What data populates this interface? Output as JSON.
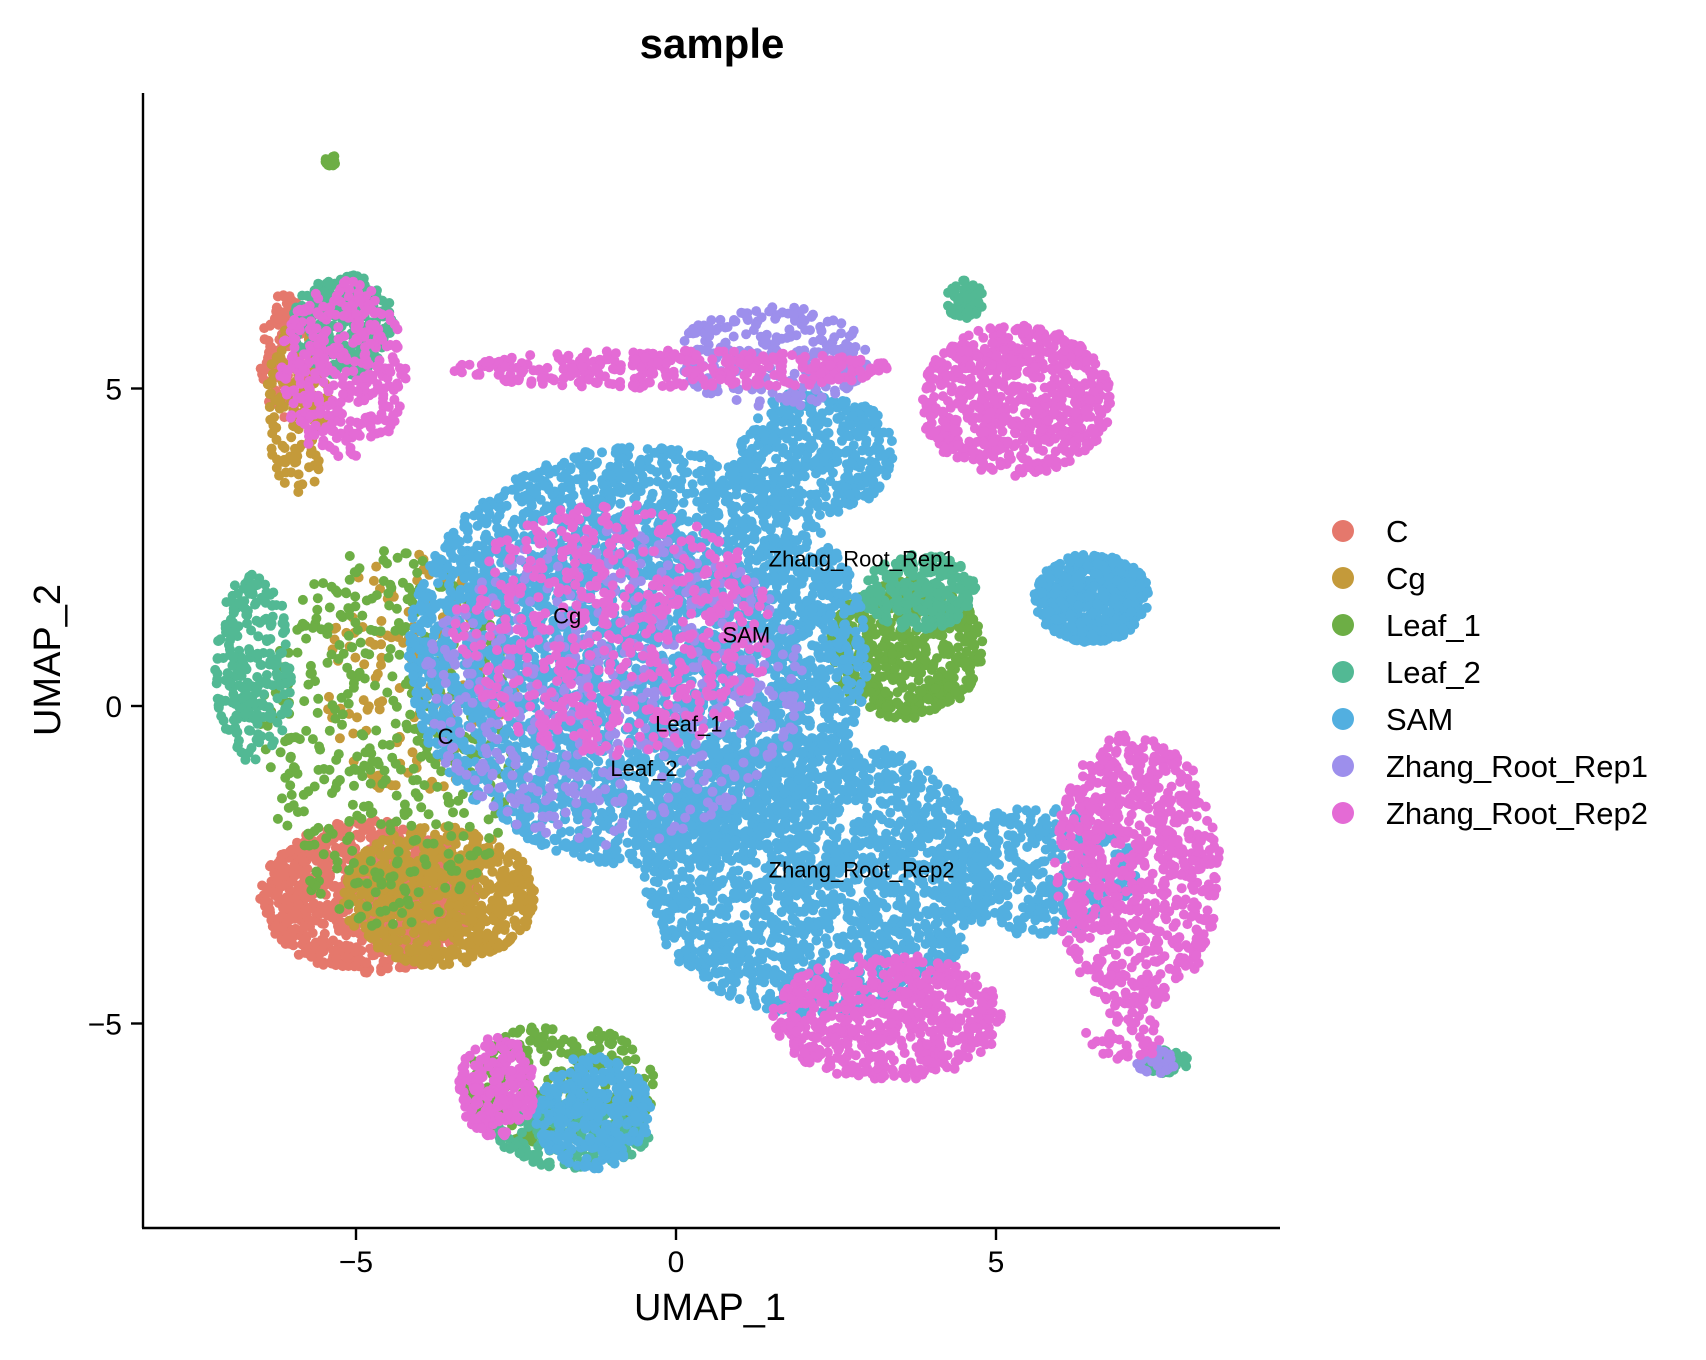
{
  "chart_data": {
    "type": "scatter",
    "title": "sample",
    "xlabel": "UMAP_1",
    "ylabel": "UMAP_2",
    "xlim": [
      -8.4,
      9.4
    ],
    "ylim": [
      -8.4,
      9.4
    ],
    "xticks": [
      -5,
      0,
      5
    ],
    "yticks": [
      -5,
      0,
      5
    ],
    "xtick_labels": [
      "−5",
      "0",
      "5"
    ],
    "ytick_labels": [
      "−5",
      "0",
      "5"
    ],
    "grid": false,
    "legend_position": "right",
    "series": [
      {
        "name": "C",
        "color": "#E5786C",
        "regions": [
          {
            "cx": -4.8,
            "cy": -3.0,
            "rx": 1.7,
            "ry": 1.2,
            "n": 900
          },
          {
            "cx": -6.1,
            "cy": 5.5,
            "rx": 0.4,
            "ry": 1.0,
            "n": 120
          }
        ]
      },
      {
        "name": "Cg",
        "color": "#C49A3A",
        "regions": [
          {
            "cx": -3.7,
            "cy": -3.0,
            "rx": 1.5,
            "ry": 1.1,
            "n": 700
          },
          {
            "cx": -5.9,
            "cy": 4.8,
            "rx": 0.5,
            "ry": 1.5,
            "n": 150
          },
          {
            "cx": -4.0,
            "cy": 0.5,
            "rx": 1.5,
            "ry": 2.0,
            "n": 150
          }
        ]
      },
      {
        "name": "Leaf_1",
        "color": "#6DAE45",
        "regions": [
          {
            "cx": 3.6,
            "cy": 0.9,
            "rx": 1.2,
            "ry": 1.1,
            "n": 500
          },
          {
            "cx": -4.5,
            "cy": -0.5,
            "rx": 2.0,
            "ry": 3.0,
            "n": 450
          },
          {
            "cx": -1.8,
            "cy": -6.0,
            "rx": 1.5,
            "ry": 1.0,
            "n": 250
          },
          {
            "cx": -5.4,
            "cy": 8.6,
            "rx": 0.1,
            "ry": 0.1,
            "n": 12
          }
        ]
      },
      {
        "name": "Leaf_2",
        "color": "#52B994",
        "regions": [
          {
            "cx": 3.8,
            "cy": 1.8,
            "rx": 0.9,
            "ry": 0.6,
            "n": 250
          },
          {
            "cx": -5.2,
            "cy": 6.0,
            "rx": 0.8,
            "ry": 0.8,
            "n": 250
          },
          {
            "cx": -6.6,
            "cy": 0.6,
            "rx": 0.6,
            "ry": 1.5,
            "n": 250
          },
          {
            "cx": -1.6,
            "cy": -6.7,
            "rx": 1.2,
            "ry": 0.6,
            "n": 200
          },
          {
            "cx": 4.5,
            "cy": 6.4,
            "rx": 0.3,
            "ry": 0.3,
            "n": 60
          },
          {
            "cx": 7.6,
            "cy": -5.6,
            "rx": 0.4,
            "ry": 0.2,
            "n": 40
          }
        ]
      },
      {
        "name": "SAM",
        "color": "#52AFE0",
        "regions": [
          {
            "cx": -0.6,
            "cy": 0.8,
            "rx": 3.6,
            "ry": 3.3,
            "n": 3600
          },
          {
            "cx": 2.2,
            "cy": -2.7,
            "rx": 2.7,
            "ry": 2.2,
            "n": 1800
          },
          {
            "cx": 6.5,
            "cy": 1.7,
            "rx": 0.9,
            "ry": 0.7,
            "n": 600
          },
          {
            "cx": 5.6,
            "cy": -2.6,
            "rx": 1.6,
            "ry": 1.0,
            "n": 400
          },
          {
            "cx": -1.3,
            "cy": -6.4,
            "rx": 0.9,
            "ry": 0.9,
            "n": 350
          },
          {
            "cx": 2.2,
            "cy": 4.0,
            "rx": 1.2,
            "ry": 1.0,
            "n": 400
          }
        ]
      },
      {
        "name": "Zhang_Root_Rep1",
        "color": "#9D8FEC",
        "regions": [
          {
            "cx": 1.5,
            "cy": 5.5,
            "rx": 1.5,
            "ry": 0.8,
            "n": 250
          },
          {
            "cx": -1.0,
            "cy": 0.3,
            "rx": 3.0,
            "ry": 2.5,
            "n": 550
          },
          {
            "cx": 7.5,
            "cy": -5.6,
            "rx": 0.3,
            "ry": 0.2,
            "n": 30
          }
        ]
      },
      {
        "name": "Zhang_Root_Rep2",
        "color": "#E46BD5",
        "regions": [
          {
            "cx": 5.3,
            "cy": 4.8,
            "rx": 1.5,
            "ry": 1.2,
            "n": 700
          },
          {
            "cx": 7.2,
            "cy": -2.6,
            "rx": 1.3,
            "ry": 2.2,
            "n": 800
          },
          {
            "cx": 3.3,
            "cy": -4.9,
            "rx": 1.8,
            "ry": 1.0,
            "n": 600
          },
          {
            "cx": 0.0,
            "cy": 5.3,
            "rx": 3.5,
            "ry": 0.3,
            "n": 350
          },
          {
            "cx": -5.2,
            "cy": 5.3,
            "rx": 1.0,
            "ry": 1.4,
            "n": 350
          },
          {
            "cx": -2.8,
            "cy": -6.0,
            "rx": 0.6,
            "ry": 0.8,
            "n": 200
          },
          {
            "cx": -1.0,
            "cy": 1.2,
            "rx": 2.5,
            "ry": 2.0,
            "n": 600
          },
          {
            "cx": 7.0,
            "cy": -5.2,
            "rx": 0.6,
            "ry": 0.4,
            "n": 40
          }
        ]
      }
    ],
    "annotations": [
      {
        "text": "C",
        "x": -3.6,
        "y": -0.6
      },
      {
        "text": "Cg",
        "x": -1.7,
        "y": 1.3
      },
      {
        "text": "SAM",
        "x": 1.1,
        "y": 1.0
      },
      {
        "text": "Zhang_Root_Rep1",
        "x": 2.9,
        "y": 2.2
      },
      {
        "text": "Leaf_1",
        "x": 0.2,
        "y": -0.4
      },
      {
        "text": "Leaf_2",
        "x": -0.5,
        "y": -1.1
      },
      {
        "text": "Zhang_Root_Rep2",
        "x": 2.9,
        "y": -2.7
      }
    ]
  }
}
